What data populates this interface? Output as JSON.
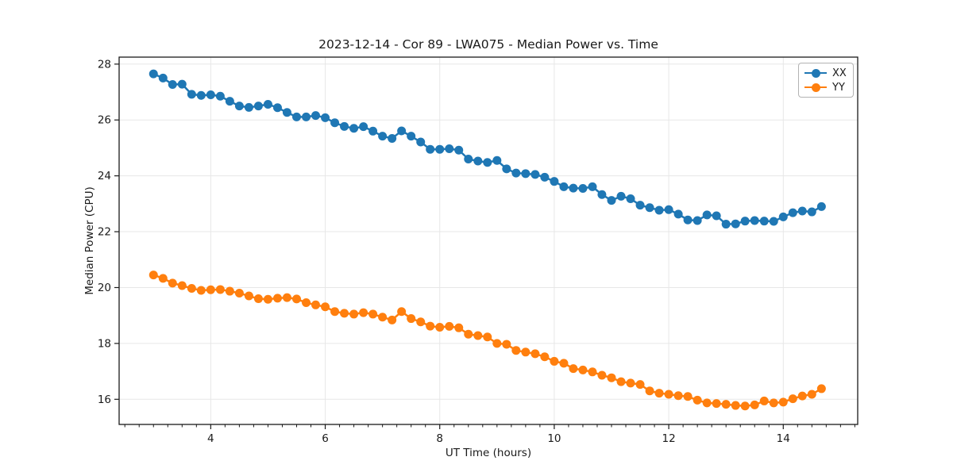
{
  "figure": {
    "title": "2023-12-14 - Cor 89 - LWA075 - Median Power vs. Time",
    "background": "#ffffff"
  },
  "legend": {
    "position": "upper right",
    "items": [
      {
        "label": "XX",
        "color": "#1f77b4"
      },
      {
        "label": "YY",
        "color": "#ff7f0e"
      }
    ]
  },
  "chart_data": {
    "type": "line",
    "title": "2023-12-14 - Cor 89 - LWA075 - Median Power vs. Time",
    "xlabel": "UT Time (hours)",
    "ylabel": "Median Power (CPU)",
    "xlim": [
      2.4,
      15.3
    ],
    "ylim": [
      15.1,
      28.25
    ],
    "xticks": [
      4,
      6,
      8,
      10,
      12,
      14
    ],
    "yticks": [
      16,
      18,
      20,
      22,
      24,
      26,
      28
    ],
    "x_minor_step": 0.25,
    "grid": true,
    "grid_color": "#e7e7e7",
    "text_color": "#1a1a1a",
    "legend_position": "upper right",
    "marker": "circle",
    "x": [
      3.0,
      3.167,
      3.333,
      3.5,
      3.667,
      3.833,
      4.0,
      4.167,
      4.333,
      4.5,
      4.667,
      4.833,
      5.0,
      5.167,
      5.333,
      5.5,
      5.667,
      5.833,
      6.0,
      6.167,
      6.333,
      6.5,
      6.667,
      6.833,
      7.0,
      7.167,
      7.333,
      7.5,
      7.667,
      7.833,
      8.0,
      8.167,
      8.333,
      8.5,
      8.667,
      8.833,
      9.0,
      9.167,
      9.333,
      9.5,
      9.667,
      9.833,
      10.0,
      10.167,
      10.333,
      10.5,
      10.667,
      10.833,
      11.0,
      11.167,
      11.333,
      11.5,
      11.667,
      11.833,
      12.0,
      12.167,
      12.333,
      12.5,
      12.667,
      12.833,
      13.0,
      13.167,
      13.333,
      13.5,
      13.667,
      13.833,
      14.0,
      14.167,
      14.333,
      14.5,
      14.667
    ],
    "series": [
      {
        "name": "XX",
        "color": "#1f77b4",
        "values": [
          27.65,
          27.5,
          27.27,
          27.28,
          26.92,
          26.88,
          26.9,
          26.85,
          26.67,
          26.5,
          26.45,
          26.5,
          26.56,
          26.44,
          26.27,
          26.11,
          26.11,
          26.16,
          26.08,
          25.9,
          25.77,
          25.7,
          25.76,
          25.6,
          25.42,
          25.34,
          25.61,
          25.42,
          25.21,
          24.95,
          24.95,
          24.97,
          24.92,
          24.6,
          24.53,
          24.48,
          24.55,
          24.25,
          24.1,
          24.08,
          24.05,
          23.95,
          23.8,
          23.61,
          23.56,
          23.55,
          23.61,
          23.33,
          23.12,
          23.27,
          23.18,
          22.95,
          22.86,
          22.77,
          22.79,
          22.63,
          22.42,
          22.4,
          22.6,
          22.57,
          22.27,
          22.28,
          22.38,
          22.4,
          22.38,
          22.37,
          22.53,
          22.68,
          22.74,
          22.71,
          22.9
        ]
      },
      {
        "name": "YY",
        "color": "#ff7f0e",
        "values": [
          20.45,
          20.33,
          20.16,
          20.07,
          19.97,
          19.9,
          19.92,
          19.93,
          19.87,
          19.8,
          19.7,
          19.6,
          19.58,
          19.62,
          19.64,
          19.59,
          19.46,
          19.38,
          19.31,
          19.14,
          19.08,
          19.05,
          19.1,
          19.05,
          18.94,
          18.84,
          19.14,
          18.89,
          18.77,
          18.62,
          18.58,
          18.61,
          18.56,
          18.33,
          18.28,
          18.23,
          18.0,
          17.97,
          17.75,
          17.69,
          17.63,
          17.52,
          17.36,
          17.29,
          17.1,
          17.05,
          16.98,
          16.86,
          16.77,
          16.63,
          16.58,
          16.53,
          16.3,
          16.22,
          16.18,
          16.13,
          16.1,
          15.97,
          15.87,
          15.85,
          15.82,
          15.78,
          15.76,
          15.8,
          15.94,
          15.87,
          15.9,
          16.02,
          16.12,
          16.18,
          16.38
        ]
      }
    ]
  }
}
